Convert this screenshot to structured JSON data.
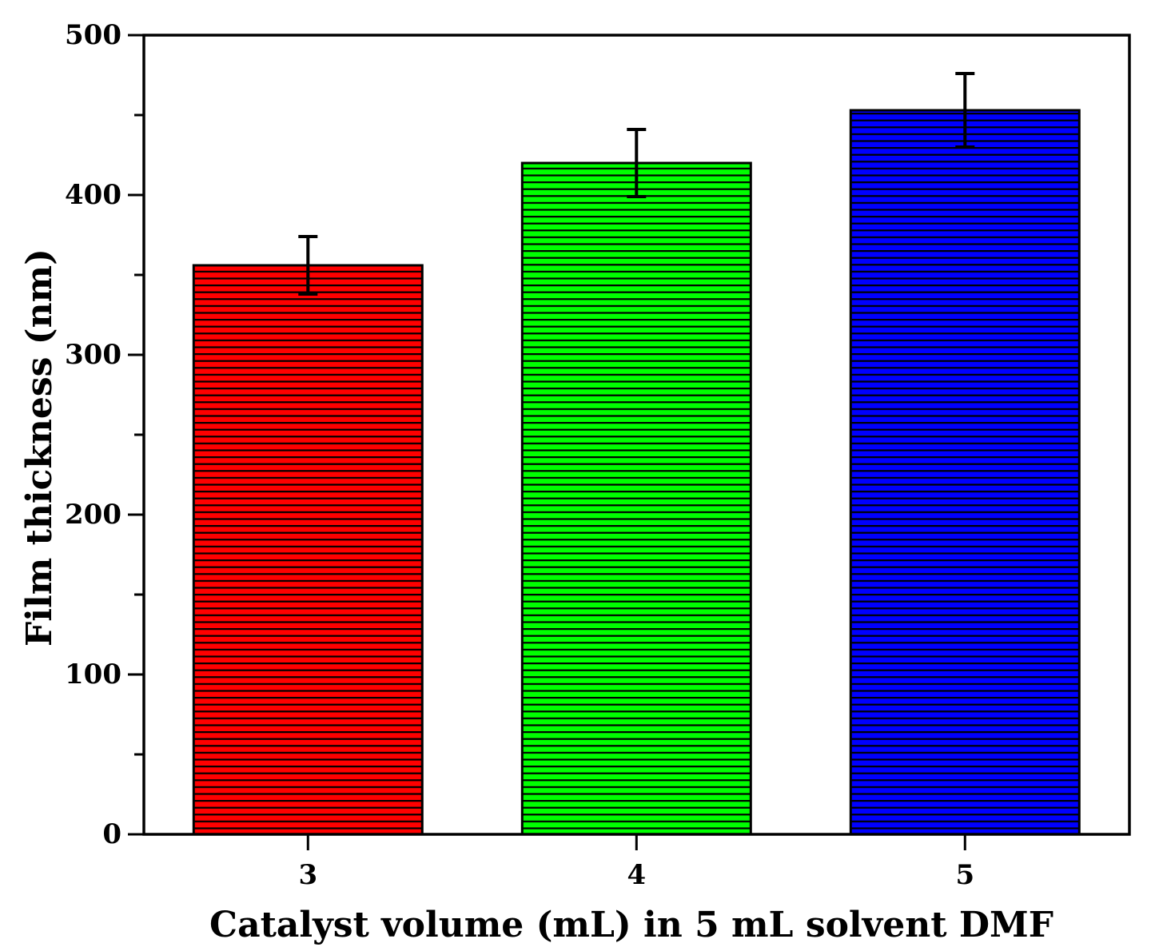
{
  "chart_data": {
    "type": "bar",
    "title": "",
    "xlabel": "Catalyst volume (mL) in 5 mL solvent DMF",
    "ylabel": "Film thickness (nm)",
    "categories": [
      "3",
      "4",
      "5"
    ],
    "values": [
      356,
      420,
      453
    ],
    "errors": [
      18,
      21,
      23
    ],
    "colors": [
      "#ff0000",
      "#00ff00",
      "#0000ff"
    ],
    "pattern": "horizontal-lines",
    "ylim": [
      0,
      500
    ],
    "yticks": [
      0,
      100,
      200,
      300,
      400,
      500
    ],
    "yticks_minor_step": 50,
    "grid": false,
    "legend": "none"
  }
}
